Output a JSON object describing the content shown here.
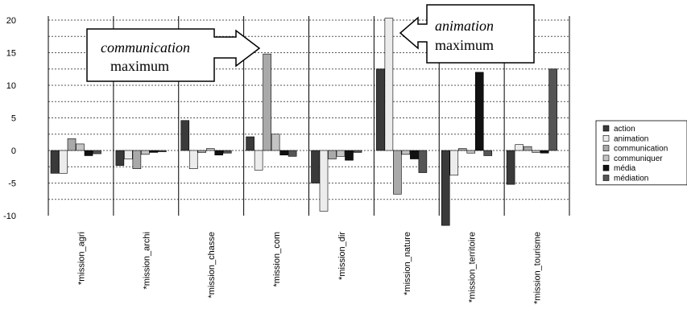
{
  "chart_data": {
    "type": "bar",
    "categories": [
      "*mission_agri",
      "*mission_archi",
      "*mission_chasse",
      "*mission_com",
      "*mission_dir",
      "*mission_nature",
      "*mission_territoire",
      "*mission_tourisme"
    ],
    "series": [
      {
        "name": "action",
        "color": "#3a3a3a",
        "values": [
          -3.5,
          -2.3,
          4.6,
          2.1,
          -5.0,
          12.5,
          -11.5,
          -5.2
        ]
      },
      {
        "name": "animation",
        "color": "#ececec",
        "values": [
          -3.5,
          -1.3,
          -2.8,
          -3.0,
          -9.3,
          20.3,
          -3.8,
          0.9
        ]
      },
      {
        "name": "communication",
        "color": "#a9a9a9",
        "values": [
          1.8,
          -2.8,
          -0.3,
          14.8,
          -1.3,
          -6.7,
          0.3,
          0.6
        ]
      },
      {
        "name": "communiquer",
        "color": "#c4c4c4",
        "values": [
          1.0,
          -0.6,
          0.3,
          2.5,
          -0.9,
          -0.6,
          -0.4,
          -0.3
        ]
      },
      {
        "name": "média",
        "color": "#111111",
        "values": [
          -0.8,
          -0.3,
          -0.7,
          -0.7,
          -1.5,
          -1.3,
          12.0,
          -0.4
        ]
      },
      {
        "name": "médiation",
        "color": "#555555",
        "values": [
          -0.5,
          -0.2,
          -0.4,
          -0.9,
          -0.3,
          -3.4,
          -0.8,
          12.5
        ]
      }
    ],
    "ylim": [
      -10,
      20
    ],
    "yticks": [
      -10,
      -5,
      0,
      5,
      10,
      15,
      20
    ],
    "grid": true,
    "legend": "right"
  },
  "annotations": {
    "communication_callout": {
      "line1": "communication",
      "line2": "maximum"
    },
    "animation_callout": {
      "line1": "animation",
      "line2": "maximum"
    }
  }
}
